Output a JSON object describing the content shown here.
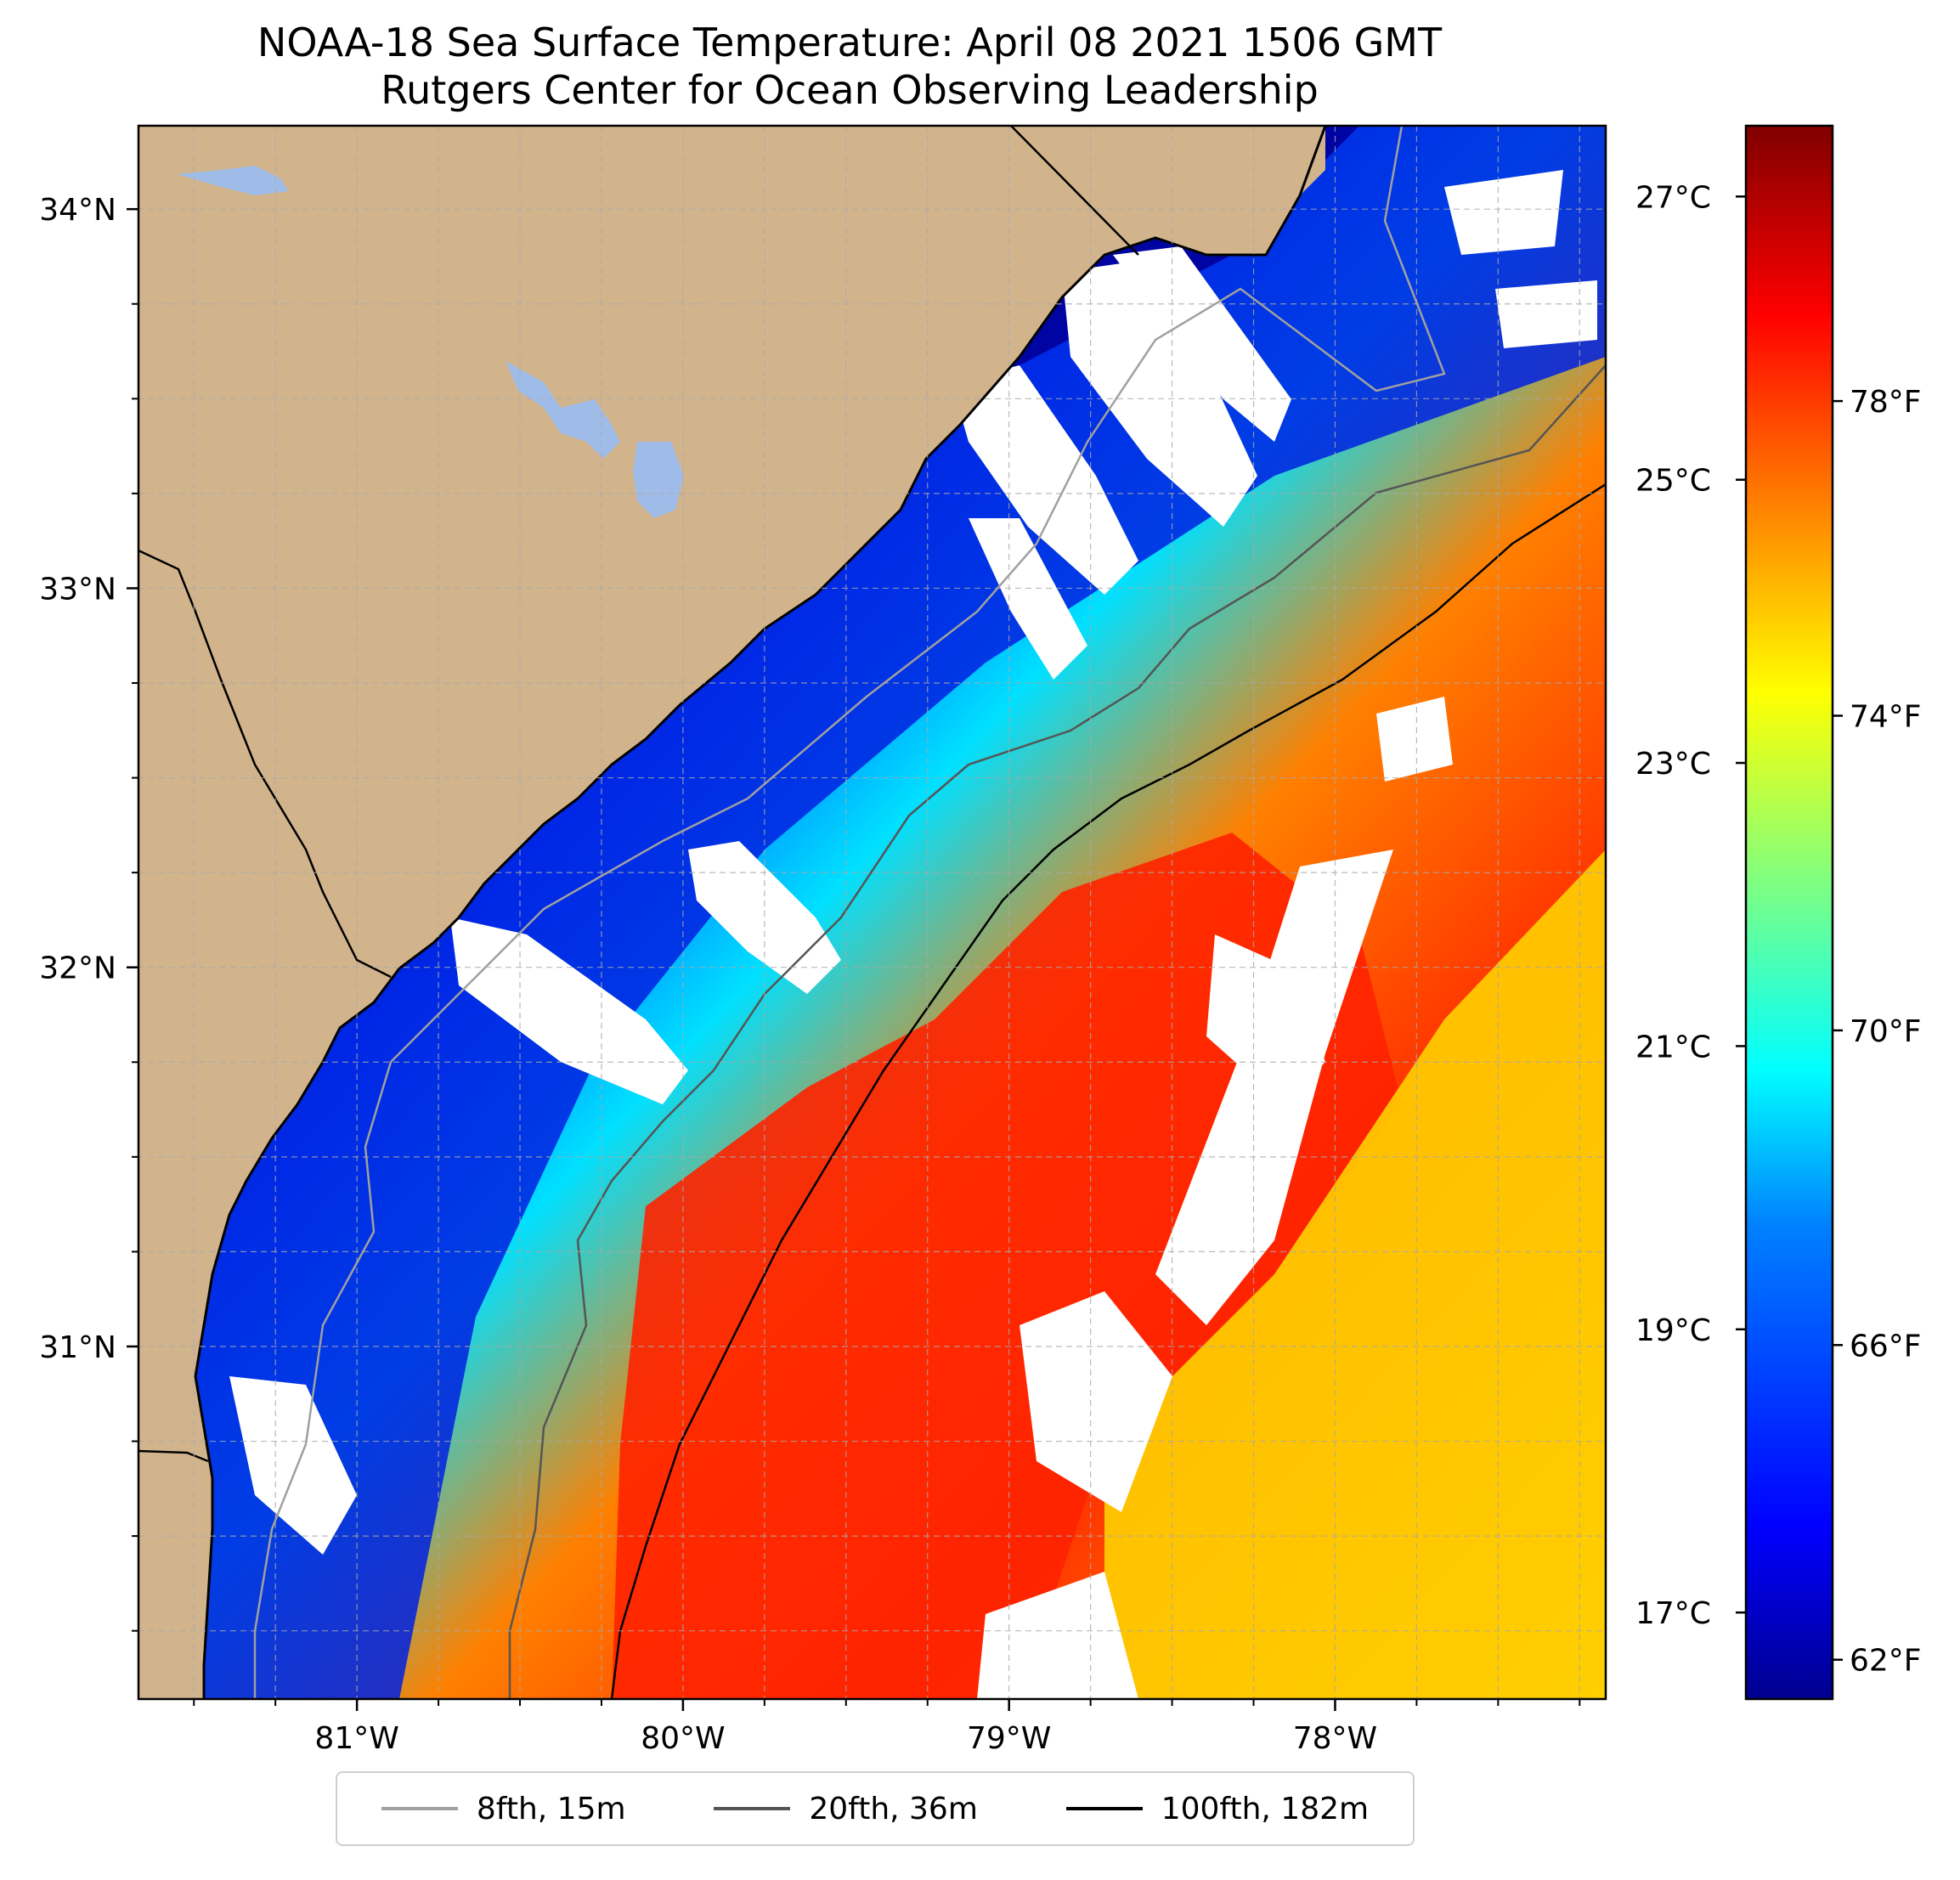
{
  "title": {
    "line1": "NOAA-18 Sea Surface Temperature: April 08 2021 1506 GMT",
    "line2": "Rutgers Center for Ocean Observing Leadership"
  },
  "colors": {
    "land": "#d2b48c",
    "lakes": "#9fbce8",
    "cloud_mask": "#ffffff",
    "state_border": "#000000",
    "grid": "#a9a9a9",
    "colormap": [
      "#00008f",
      "#0000ff",
      "#0080ff",
      "#00ffff",
      "#80ff80",
      "#ffff00",
      "#ff8000",
      "#ff0000",
      "#800000"
    ]
  },
  "map": {
    "lon_range": [
      -81.67,
      -77.17
    ],
    "lat_range": [
      30.07,
      34.22
    ],
    "lon_ticks": [
      {
        "value": -81,
        "label": "81°W"
      },
      {
        "value": -80,
        "label": "80°W"
      },
      {
        "value": -79,
        "label": "79°W"
      },
      {
        "value": -78,
        "label": "78°W"
      }
    ],
    "lat_ticks": [
      {
        "value": 31,
        "label": "31°N"
      },
      {
        "value": 32,
        "label": "32°N"
      },
      {
        "value": 33,
        "label": "33°N"
      },
      {
        "value": 34,
        "label": "34°N"
      }
    ],
    "minor_grid": true
  },
  "colorbar": {
    "range_f": [
      61.5,
      81.5
    ],
    "celsius_ticks": [
      {
        "value_c": 17,
        "label": "17°C"
      },
      {
        "value_c": 19,
        "label": "19°C"
      },
      {
        "value_c": 21,
        "label": "21°C"
      },
      {
        "value_c": 23,
        "label": "23°C"
      },
      {
        "value_c": 25,
        "label": "25°C"
      },
      {
        "value_c": 27,
        "label": "27°C"
      }
    ],
    "fahrenheit_ticks": [
      {
        "value_f": 62,
        "label": "62°F"
      },
      {
        "value_f": 66,
        "label": "66°F"
      },
      {
        "value_f": 70,
        "label": "70°F"
      },
      {
        "value_f": 74,
        "label": "74°F"
      },
      {
        "value_f": 78,
        "label": "78°F"
      }
    ]
  },
  "legend": {
    "entries": [
      {
        "label": "8fth, 15m",
        "color": "#a0a0a0"
      },
      {
        "label": "20fth, 36m",
        "color": "#555555"
      },
      {
        "label": "100fth, 182m",
        "color": "#000000"
      }
    ]
  }
}
